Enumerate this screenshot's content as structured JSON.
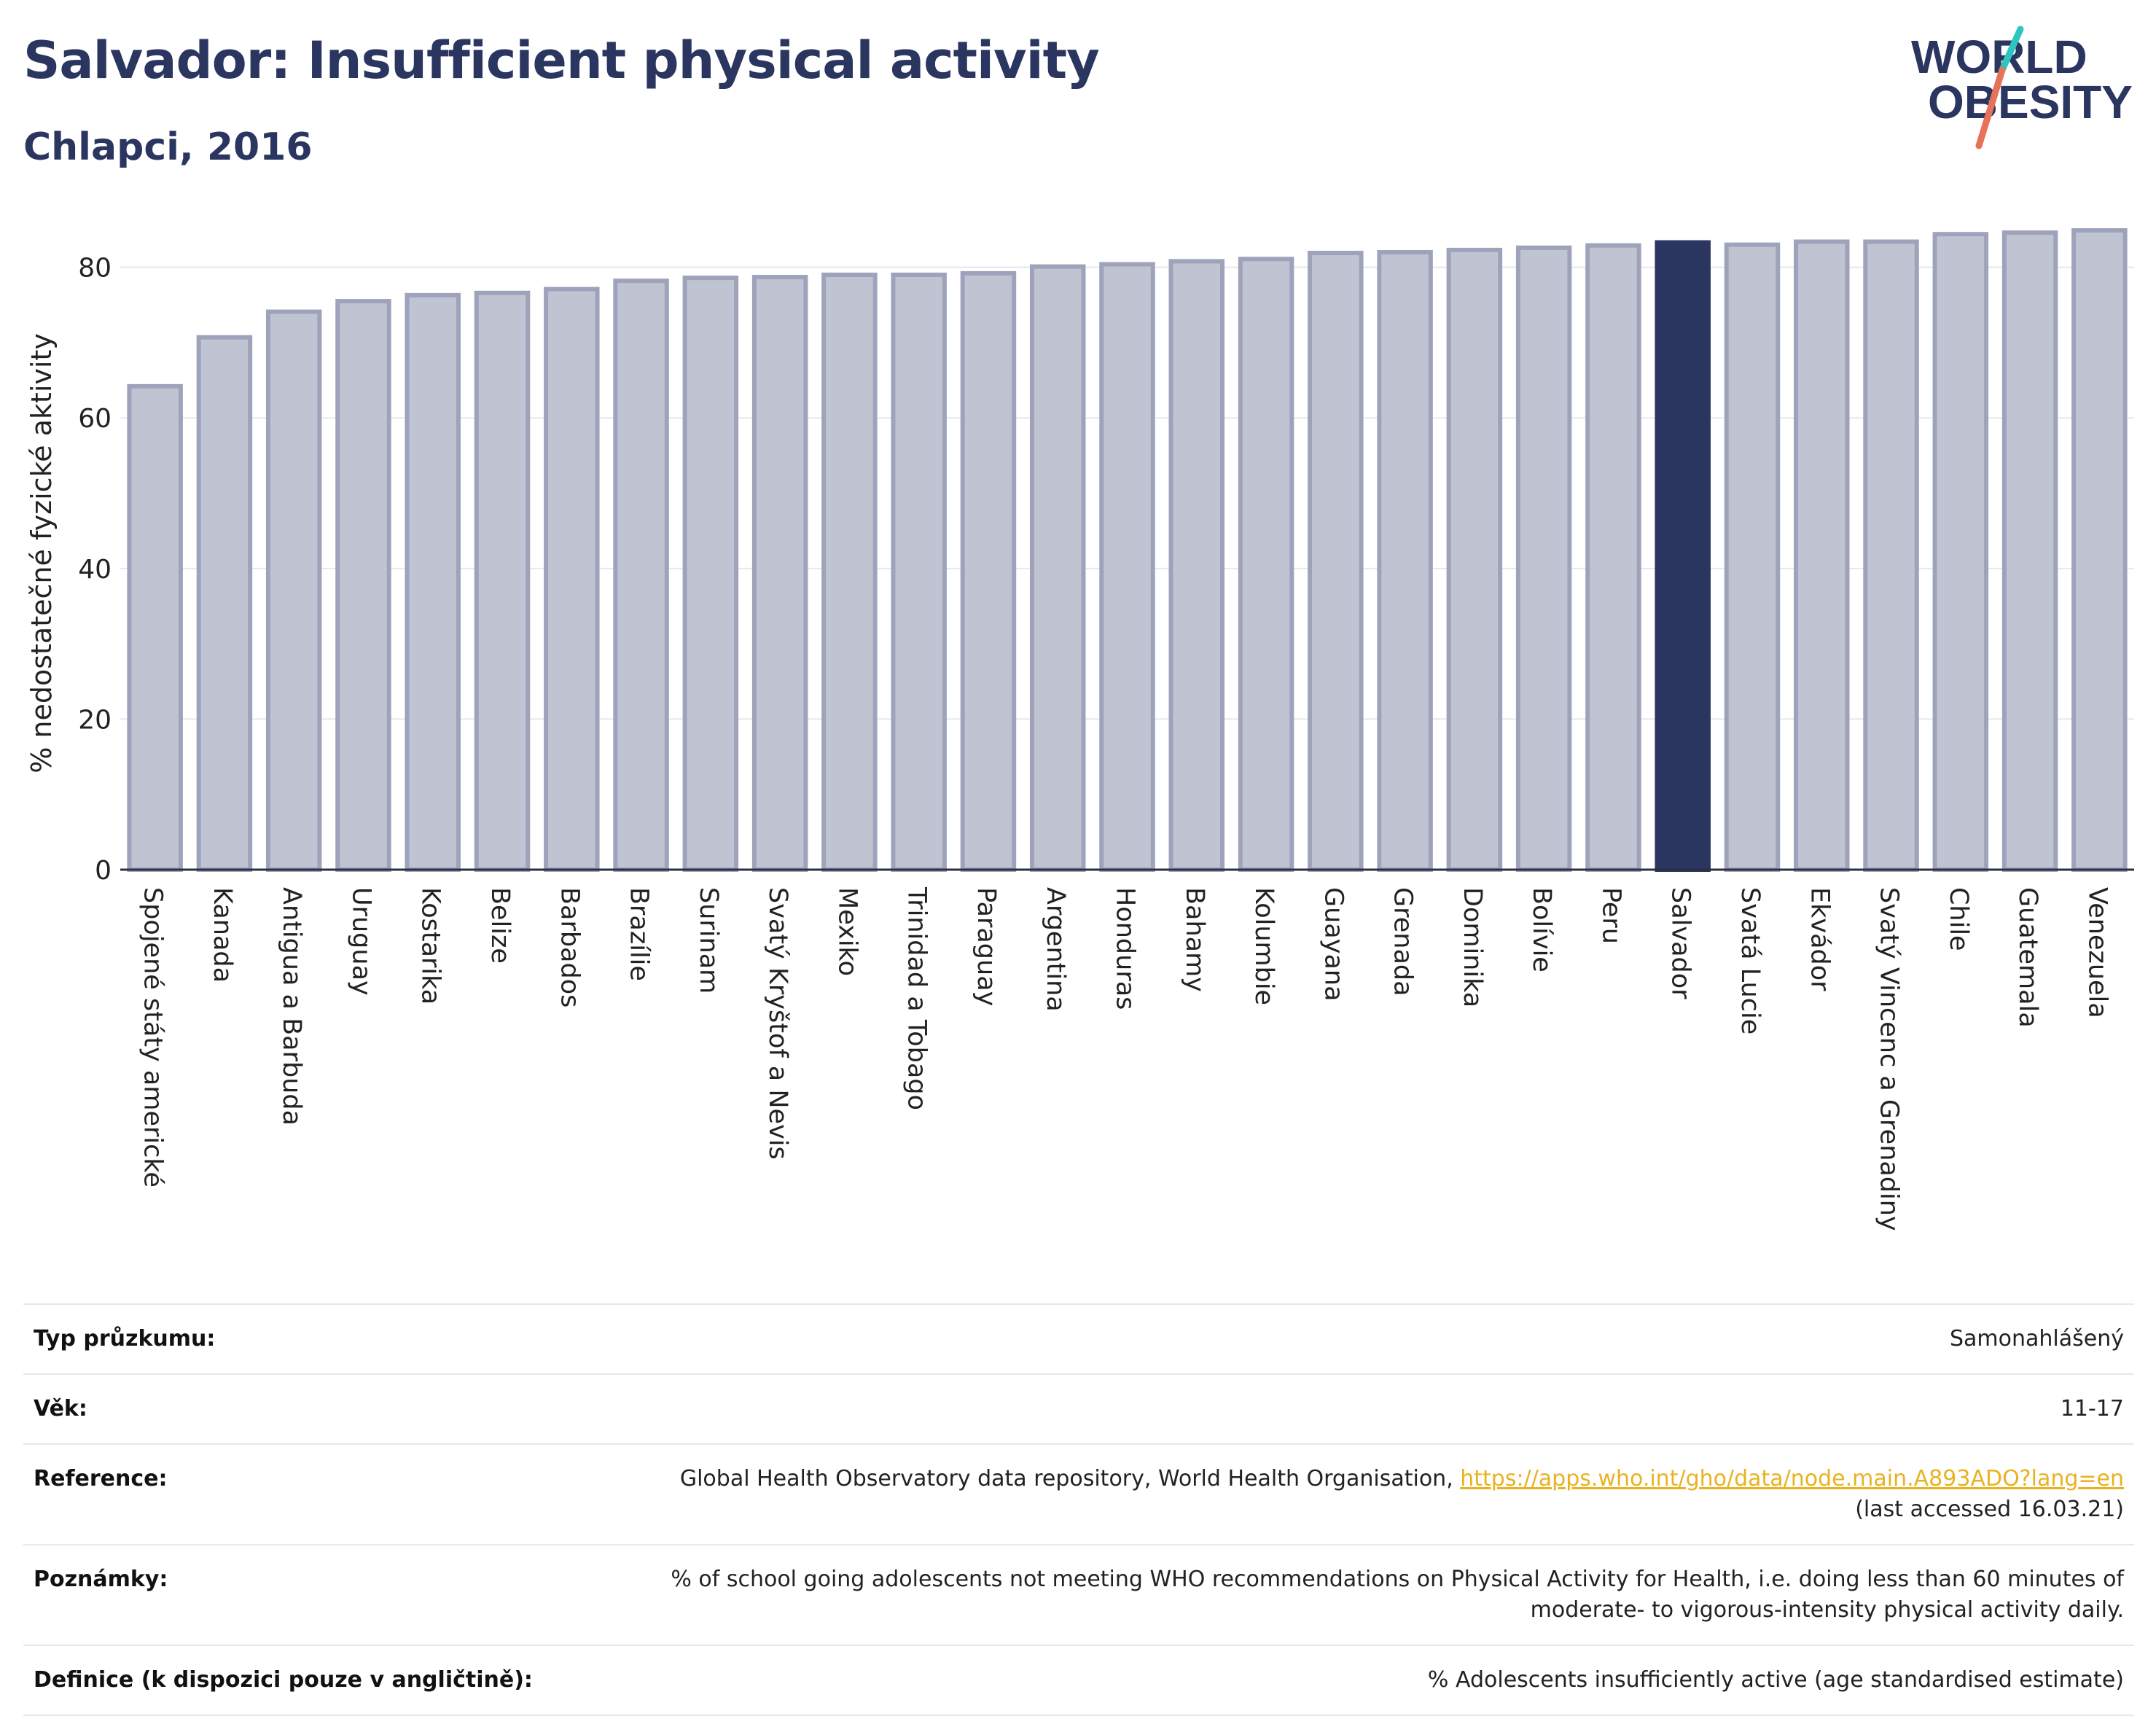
{
  "header": {
    "title": "Salvador: Insufficient physical activity",
    "subtitle": "Chlapci, 2016"
  },
  "logo": {
    "line1": "WORLD",
    "line2": "OBESITY",
    "slash_colors": [
      "#2ec4c0",
      "#e8715a"
    ]
  },
  "colors": {
    "bar_fill": "#c0c3d1",
    "bar_stroke": "#9ea3bb",
    "highlight": "#2a3560",
    "grid": "#e6e8ee",
    "axis": "#2a2f45",
    "link": "#e8b320"
  },
  "chart_data": {
    "type": "bar",
    "ylabel": "% nedostatečné fyzické aktivity",
    "ylim": [
      0,
      85
    ],
    "yticks": [
      0,
      20,
      40,
      60,
      80
    ],
    "highlight_category": "Salvador",
    "categories": [
      "Spojené státy americké",
      "Kanada",
      "Antigua a Barbuda",
      "Uruguay",
      "Kostarika",
      "Belize",
      "Barbados",
      "Brazílie",
      "Surinam",
      "Svatý Kryštof a Nevis",
      "Mexiko",
      "Trinidad a Tobago",
      "Paraguay",
      "Argentina",
      "Honduras",
      "Bahamy",
      "Kolumbie",
      "Guayana",
      "Grenada",
      "Dominika",
      "Bolívie",
      "Peru",
      "Salvador",
      "Svatá Lucie",
      "Ekvádor",
      "Svatý Vincenc a Grenadiny",
      "Chile",
      "Guatemala",
      "Venezuela"
    ],
    "values": [
      64.2,
      70.7,
      74.1,
      75.5,
      76.3,
      76.6,
      77.1,
      78.2,
      78.6,
      78.7,
      79.0,
      79.0,
      79.2,
      80.1,
      80.4,
      80.8,
      81.1,
      81.9,
      82.0,
      82.3,
      82.6,
      82.9,
      83.3,
      83.0,
      83.4,
      83.4,
      84.4,
      84.6,
      84.9
    ]
  },
  "info": {
    "rows": [
      {
        "label": "Typ průzkumu:",
        "value": "Samonahlášený"
      },
      {
        "label": "Věk:",
        "value": "11-17"
      },
      {
        "label": "Reference:",
        "value_prefix": "Global Health Observatory data repository, World Health Organisation, ",
        "link": "https://apps.who.int/gho/data/node.main.A893ADO?lang=en",
        "value_suffix": "(last accessed 16.03.21)"
      },
      {
        "label": "Poznámky:",
        "value_line1": "% of school going adolescents not meeting WHO recommendations on Physical Activity for Health, i.e. doing less than 60 minutes of",
        "value_line2": "moderate- to vigorous-intensity physical activity daily."
      },
      {
        "label": "Definice (k dispozici pouze v angličtině):",
        "value": "% Adolescents insufficiently active (age standardised estimate)"
      }
    ]
  }
}
